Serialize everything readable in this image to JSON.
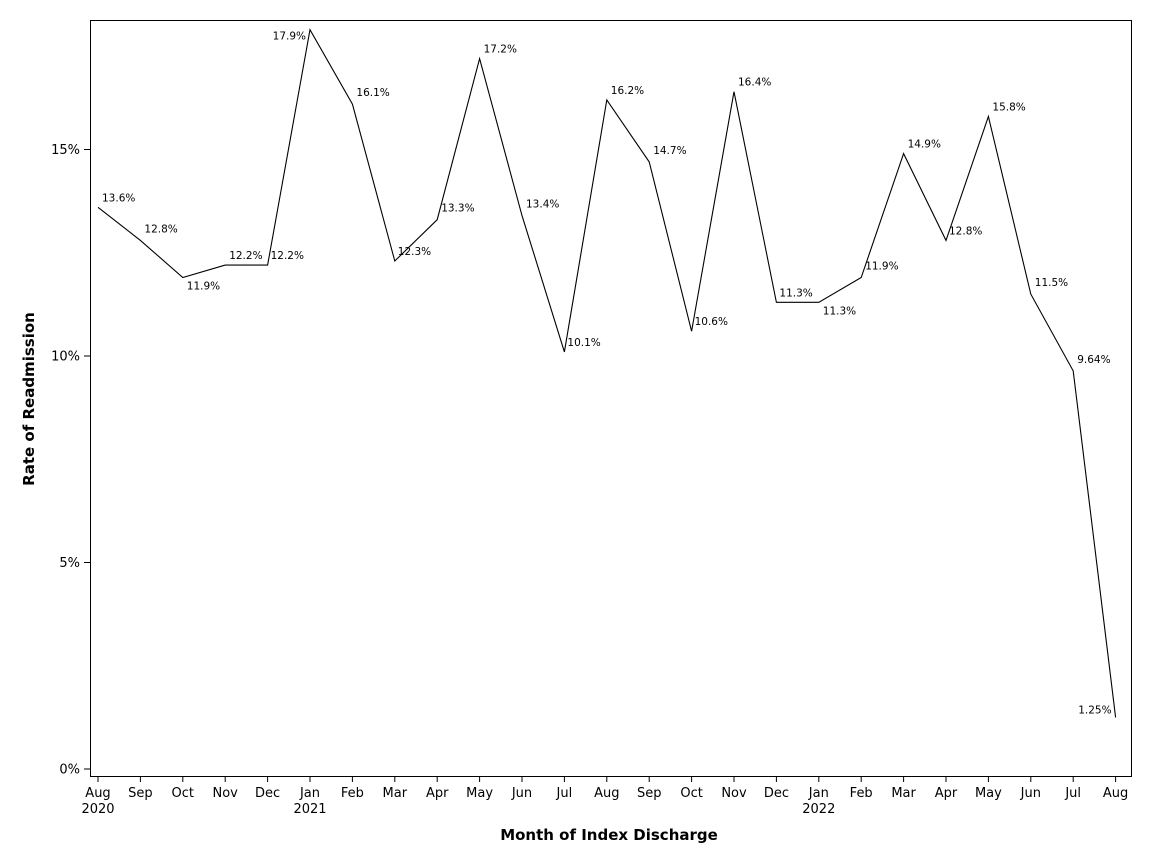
{
  "chart_data": {
    "type": "line",
    "title": "",
    "xlabel": "Month of Index Discharge",
    "ylabel": "Rate of Readmission",
    "ylim": [
      0,
      18
    ],
    "grid": false,
    "legend": "none",
    "y_ticks": [
      {
        "value": 0,
        "label": "0%"
      },
      {
        "value": 5,
        "label": "5%"
      },
      {
        "value": 10,
        "label": "10%"
      },
      {
        "value": 15,
        "label": "15%"
      }
    ],
    "categories": [
      "Aug",
      "Sep",
      "Oct",
      "Nov",
      "Dec",
      "Jan",
      "Feb",
      "Mar",
      "Apr",
      "May",
      "Jun",
      "Jul",
      "Aug",
      "Sep",
      "Oct",
      "Nov",
      "Dec",
      "Jan",
      "Feb",
      "Mar",
      "Apr",
      "May",
      "Jun",
      "Jul",
      "Aug"
    ],
    "year_labels": [
      "2020",
      "",
      "",
      "",
      "",
      "2021",
      "",
      "",
      "",
      "",
      "",
      "",
      "",
      "",
      "",
      "",
      "",
      "2022",
      "",
      "",
      "",
      "",
      "",
      "",
      ""
    ],
    "series": [
      {
        "values": [
          13.6,
          12.8,
          11.9,
          12.2,
          12.2,
          17.9,
          16.1,
          12.3,
          13.3,
          17.2,
          13.4,
          10.1,
          16.2,
          14.7,
          10.6,
          16.4,
          11.3,
          11.3,
          11.9,
          14.9,
          12.8,
          15.8,
          11.5,
          9.64,
          1.25
        ],
        "labels": [
          "13.6%",
          "12.8%",
          "11.9%",
          "12.2%",
          "12.2%",
          "17.9%",
          "16.1%",
          "12.3%",
          "13.3%",
          "17.2%",
          "13.4%",
          "10.1%",
          "16.2%",
          "14.7%",
          "10.6%",
          "16.4%",
          "11.3%",
          "11.3%",
          "11.9%",
          "14.9%",
          "12.8%",
          "15.8%",
          "11.5%",
          "9.64%",
          "1.25%"
        ]
      }
    ]
  }
}
